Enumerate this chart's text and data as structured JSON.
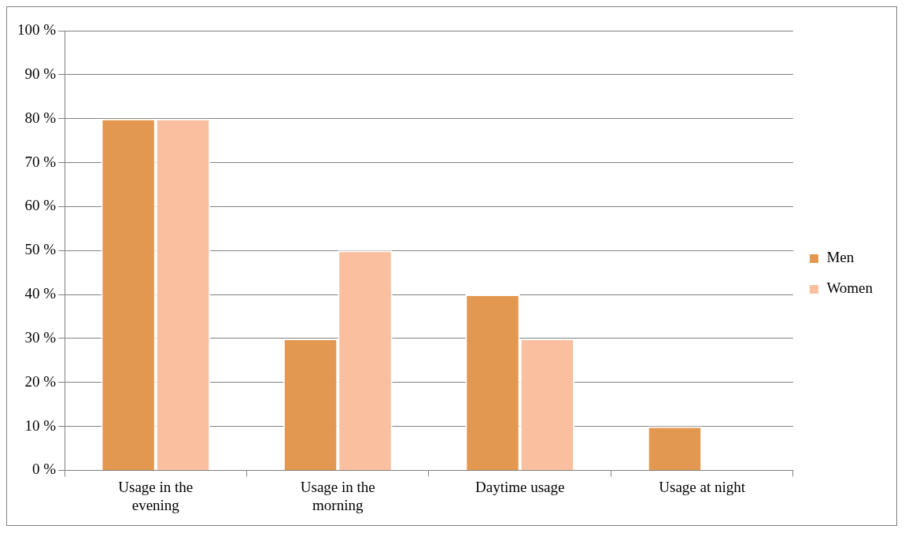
{
  "chart_data": {
    "type": "bar",
    "categories": [
      "Usage in the evening",
      "Usage in the morning",
      "Daytime usage",
      "Usage at night"
    ],
    "series": [
      {
        "name": "Men",
        "color": "#e29850",
        "values": [
          80,
          30,
          40,
          10
        ]
      },
      {
        "name": "Women",
        "color": "#f9bf9f",
        "values": [
          80,
          50,
          30,
          0
        ]
      }
    ],
    "ylim": [
      0,
      100
    ],
    "yticks": [
      {
        "value": 0,
        "label": "0 %"
      },
      {
        "value": 10,
        "label": "10 %"
      },
      {
        "value": 20,
        "label": "20 %"
      },
      {
        "value": 30,
        "label": "30 %"
      },
      {
        "value": 40,
        "label": "40 %"
      },
      {
        "value": 50,
        "label": "50 %"
      },
      {
        "value": 60,
        "label": "60 %"
      },
      {
        "value": 70,
        "label": "70 %"
      },
      {
        "value": 80,
        "label": "80 %"
      },
      {
        "value": 90,
        "label": "90 %"
      },
      {
        "value": 100,
        "label": "100 %"
      }
    ],
    "grid": "y",
    "legend": "right"
  }
}
